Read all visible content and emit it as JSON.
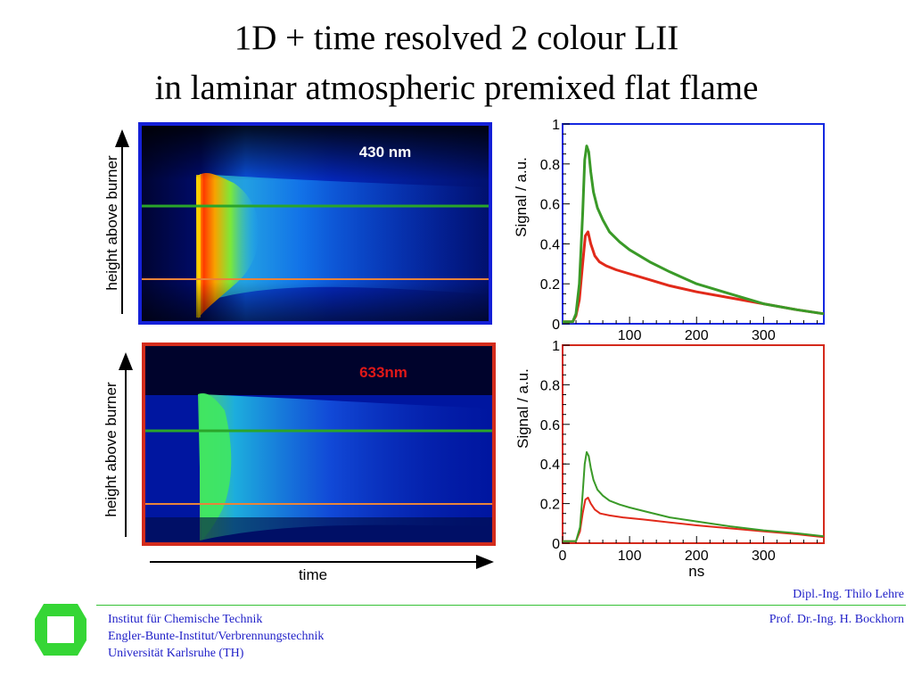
{
  "title": {
    "line1": "1D + time resolved 2 colour LII",
    "line2": "in laminar atmospheric premixed flat flame"
  },
  "images": {
    "top": {
      "label": "430 nm",
      "label_color": "#ffffff",
      "frame_color": "#1420d8",
      "y_axis_label": "height above burner"
    },
    "bottom": {
      "label": "633nm",
      "label_color": "#e01818",
      "frame_color": "#d42c1c",
      "y_axis_label": "height above burner"
    },
    "x_axis_label": "time",
    "line_colors": {
      "upper": "#2aa52a",
      "lower": "#e8843a"
    }
  },
  "chart_data": [
    {
      "type": "line",
      "panel": "top",
      "frame_color": "#1428e0",
      "ylabel": "Signal  / a.u.",
      "xlabel": "",
      "xlim": [
        0,
        390
      ],
      "ylim": [
        0,
        1
      ],
      "x_ticks": [
        "100",
        "200",
        "300"
      ],
      "y_ticks": [
        "0",
        "0.2",
        "0.4",
        "0.6",
        "0.8",
        "1"
      ],
      "series": [
        {
          "color": "#e12a1a",
          "x": [
            0,
            15,
            20,
            25,
            30,
            34,
            38,
            42,
            48,
            55,
            65,
            80,
            100,
            130,
            160,
            200,
            250,
            300,
            350,
            390
          ],
          "y": [
            0.01,
            0.01,
            0.04,
            0.12,
            0.3,
            0.44,
            0.46,
            0.4,
            0.34,
            0.31,
            0.29,
            0.27,
            0.25,
            0.22,
            0.19,
            0.16,
            0.13,
            0.1,
            0.07,
            0.05
          ]
        },
        {
          "color": "#3a9a28",
          "x": [
            0,
            15,
            20,
            25,
            30,
            33,
            36,
            39,
            42,
            46,
            52,
            60,
            70,
            85,
            100,
            130,
            160,
            200,
            250,
            300,
            350,
            390
          ],
          "y": [
            0.01,
            0.01,
            0.05,
            0.2,
            0.55,
            0.82,
            0.89,
            0.86,
            0.76,
            0.66,
            0.58,
            0.52,
            0.46,
            0.41,
            0.37,
            0.31,
            0.26,
            0.2,
            0.15,
            0.1,
            0.07,
            0.05
          ]
        }
      ]
    },
    {
      "type": "line",
      "panel": "bottom",
      "frame_color": "#d42a1c",
      "ylabel": "Signal  / a.u.",
      "xlabel": "ns",
      "xlim": [
        0,
        390
      ],
      "ylim": [
        0,
        1
      ],
      "x_ticks": [
        "0",
        "100",
        "200",
        "300"
      ],
      "y_ticks": [
        "0",
        "0.2",
        "0.4",
        "0.6",
        "0.8",
        "1"
      ],
      "series": [
        {
          "color": "#e12a1a",
          "x": [
            0,
            20,
            26,
            30,
            34,
            38,
            42,
            48,
            56,
            70,
            90,
            120,
            160,
            200,
            250,
            300,
            350,
            390
          ],
          "y": [
            0.01,
            0.01,
            0.06,
            0.15,
            0.22,
            0.23,
            0.2,
            0.17,
            0.15,
            0.14,
            0.13,
            0.12,
            0.105,
            0.09,
            0.075,
            0.06,
            0.045,
            0.03
          ]
        },
        {
          "color": "#3a9a28",
          "x": [
            0,
            20,
            26,
            30,
            33,
            36,
            39,
            42,
            46,
            52,
            60,
            70,
            85,
            100,
            130,
            160,
            200,
            250,
            300,
            350,
            390
          ],
          "y": [
            0.01,
            0.01,
            0.08,
            0.25,
            0.4,
            0.46,
            0.44,
            0.38,
            0.32,
            0.27,
            0.24,
            0.215,
            0.195,
            0.18,
            0.155,
            0.13,
            0.11,
            0.085,
            0.065,
            0.05,
            0.035
          ]
        }
      ]
    }
  ],
  "footer": {
    "author": "Dipl.-Ing. Thilo Lehre",
    "professor": "Prof. Dr.-Ing. H. Bockhorn",
    "institute_lines": [
      "Institut für Chemische Technik",
      "Engler-Bunte-Institut/Verbrennungstechnik",
      "Universität Karlsruhe (TH)"
    ],
    "logo_color": "#35d635"
  }
}
